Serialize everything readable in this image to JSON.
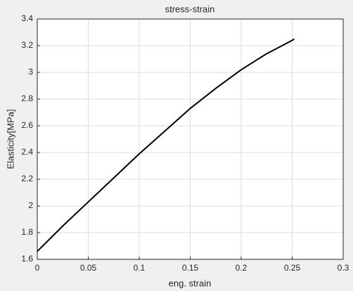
{
  "chart_data": {
    "type": "line",
    "title": "stress-strain",
    "x_label": "eng. strain",
    "y_label": "Elasticity[MPa]",
    "x": [
      0,
      0.025,
      0.05,
      0.075,
      0.1,
      0.125,
      0.15,
      0.175,
      0.2,
      0.225,
      0.25,
      0.252
    ],
    "values": [
      1.66,
      1.85,
      2.03,
      2.21,
      2.39,
      2.56,
      2.73,
      2.88,
      3.02,
      3.14,
      3.24,
      3.25
    ],
    "color": "#000000",
    "xlim": [
      0,
      0.3
    ],
    "xticks": [
      0,
      0.05,
      0.1,
      0.15,
      0.2,
      0.25,
      0.3
    ],
    "ylim": [
      1.6,
      3.4
    ],
    "yticks": [
      1.6,
      1.8,
      2,
      2.2,
      2.4,
      2.6,
      2.8,
      3,
      3.2,
      3.4
    ],
    "grid": true
  }
}
